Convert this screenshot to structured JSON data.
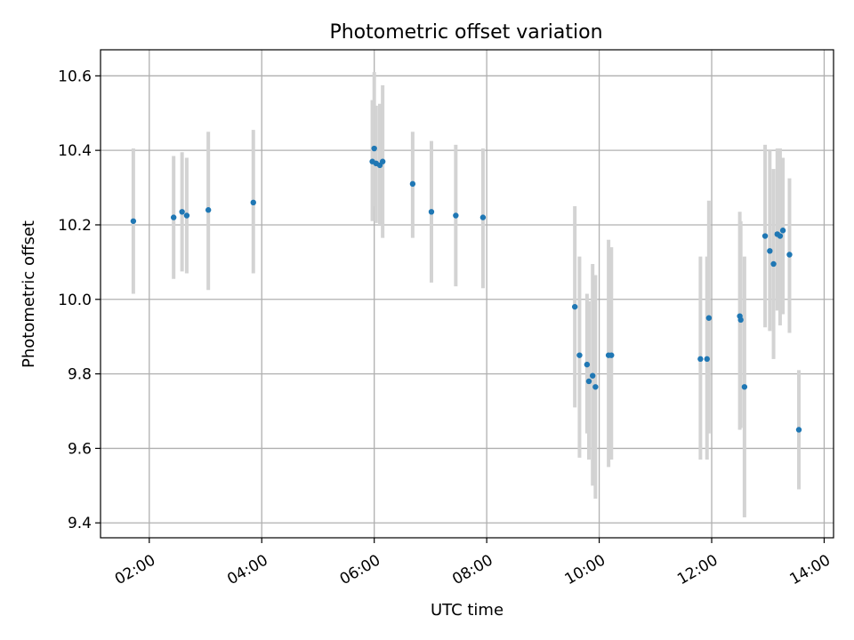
{
  "chart_data": {
    "type": "scatter",
    "title": "Photometric offset variation",
    "xlabel": "UTC time",
    "ylabel": "Photometric offset",
    "grid": true,
    "xlim": [
      "01:08",
      "14:10"
    ],
    "ylim": [
      9.36,
      10.67
    ],
    "x_ticks": [
      "02:00",
      "04:00",
      "06:00",
      "08:00",
      "10:00",
      "12:00",
      "14:00"
    ],
    "y_ticks": [
      9.4,
      9.6,
      9.8,
      10.0,
      10.2,
      10.4,
      10.6
    ],
    "y_tick_labels": [
      "9.4",
      "9.6",
      "9.8",
      "10.0",
      "10.2",
      "10.4",
      "10.6"
    ],
    "marker_color": "#1f77b4",
    "errorbar_color": "#d3d3d3",
    "series": [
      {
        "points": [
          {
            "x": "01:43",
            "y": 10.21,
            "low": 10.015,
            "high": 10.405
          },
          {
            "x": "02:26",
            "y": 10.22,
            "low": 10.055,
            "high": 10.385
          },
          {
            "x": "02:35",
            "y": 10.235,
            "low": 10.075,
            "high": 10.395
          },
          {
            "x": "02:40",
            "y": 10.225,
            "low": 10.07,
            "high": 10.38
          },
          {
            "x": "03:03",
            "y": 10.24,
            "low": 10.025,
            "high": 10.45
          },
          {
            "x": "03:51",
            "y": 10.26,
            "low": 10.07,
            "high": 10.455
          },
          {
            "x": "05:58",
            "y": 10.37,
            "low": 10.21,
            "high": 10.535
          },
          {
            "x": "06:00",
            "y": 10.405,
            "low": 10.25,
            "high": 10.61
          },
          {
            "x": "06:02",
            "y": 10.365,
            "low": 10.205,
            "high": 10.52
          },
          {
            "x": "06:06",
            "y": 10.36,
            "low": 10.2,
            "high": 10.525
          },
          {
            "x": "06:09",
            "y": 10.37,
            "low": 10.165,
            "high": 10.575
          },
          {
            "x": "06:41",
            "y": 10.31,
            "low": 10.165,
            "high": 10.45
          },
          {
            "x": "07:01",
            "y": 10.235,
            "low": 10.045,
            "high": 10.425
          },
          {
            "x": "07:27",
            "y": 10.225,
            "low": 10.035,
            "high": 10.415
          },
          {
            "x": "07:56",
            "y": 10.22,
            "low": 10.03,
            "high": 10.405
          },
          {
            "x": "09:34",
            "y": 9.98,
            "low": 9.71,
            "high": 10.25
          },
          {
            "x": "09:39",
            "y": 9.85,
            "low": 9.575,
            "high": 10.115
          },
          {
            "x": "09:47",
            "y": 9.825,
            "low": 9.64,
            "high": 10.015
          },
          {
            "x": "09:49",
            "y": 9.78,
            "low": 9.57,
            "high": 9.995
          },
          {
            "x": "09:53",
            "y": 9.795,
            "low": 9.5,
            "high": 10.095
          },
          {
            "x": "09:56",
            "y": 9.765,
            "low": 9.465,
            "high": 10.065
          },
          {
            "x": "10:10",
            "y": 9.85,
            "low": 9.55,
            "high": 10.16
          },
          {
            "x": "10:13",
            "y": 9.85,
            "low": 9.57,
            "high": 10.14
          },
          {
            "x": "11:48",
            "y": 9.84,
            "low": 9.57,
            "high": 10.115
          },
          {
            "x": "11:55",
            "y": 9.84,
            "low": 9.57,
            "high": 10.115
          },
          {
            "x": "11:57",
            "y": 9.95,
            "low": 9.64,
            "high": 10.265
          },
          {
            "x": "12:30",
            "y": 9.955,
            "low": 9.65,
            "high": 10.235
          },
          {
            "x": "12:31",
            "y": 9.945,
            "low": 9.655,
            "high": 10.21
          },
          {
            "x": "12:35",
            "y": 9.765,
            "low": 9.415,
            "high": 10.115
          },
          {
            "x": "12:57",
            "y": 10.17,
            "low": 9.925,
            "high": 10.415
          },
          {
            "x": "13:02",
            "y": 10.13,
            "low": 9.915,
            "high": 10.4
          },
          {
            "x": "13:06",
            "y": 10.095,
            "low": 9.84,
            "high": 10.35
          },
          {
            "x": "13:10",
            "y": 10.175,
            "low": 9.97,
            "high": 10.405
          },
          {
            "x": "13:13",
            "y": 10.17,
            "low": 9.93,
            "high": 10.405
          },
          {
            "x": "13:16",
            "y": 10.185,
            "low": 9.96,
            "high": 10.38
          },
          {
            "x": "13:23",
            "y": 10.12,
            "low": 9.91,
            "high": 10.325
          },
          {
            "x": "13:33",
            "y": 9.65,
            "low": 9.49,
            "high": 9.81
          }
        ]
      }
    ]
  }
}
